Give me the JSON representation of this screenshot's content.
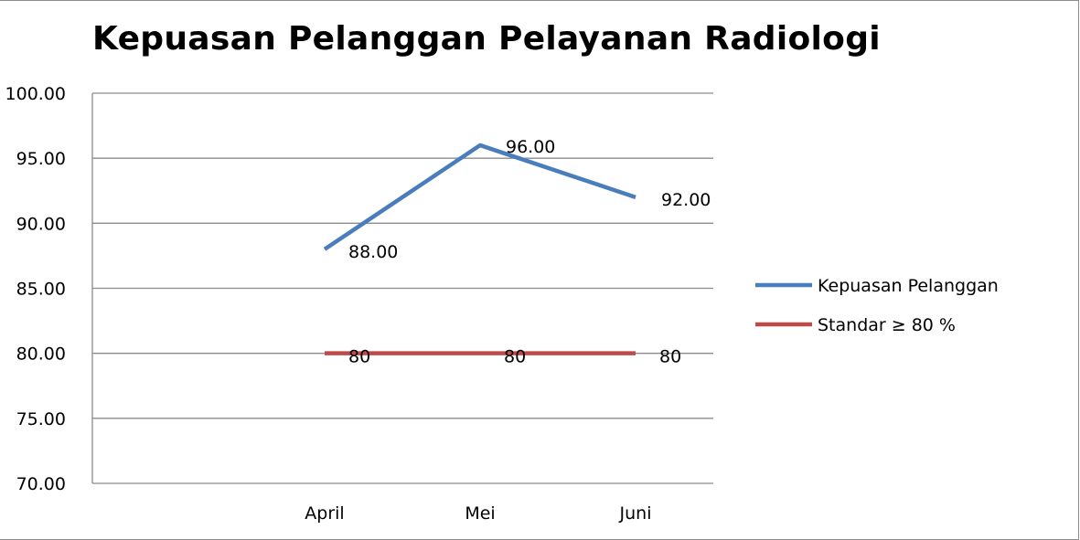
{
  "chart_data": {
    "type": "line",
    "title": "Kepuasan Pelanggan Pelayanan Radiologi",
    "categories": [
      "April",
      "Mei",
      "Juni"
    ],
    "y_tick_labels": [
      "70.00",
      "75.00",
      "80.00",
      "85.00",
      "90.00",
      "95.00",
      "100.00"
    ],
    "ylim": [
      70,
      100
    ],
    "y_step": 5,
    "grid": true,
    "legend_position": "right",
    "series": [
      {
        "name": "Kepuasan Pelanggan",
        "values": [
          88,
          96,
          92
        ],
        "data_labels": [
          "88.00",
          "96.00",
          "92.00"
        ],
        "color": "#4a7ebb"
      },
      {
        "name": "Standar  ≥ 80 %",
        "values": [
          80,
          80,
          80
        ],
        "data_labels": [
          "80",
          "80",
          "80"
        ],
        "color": "#be4b48"
      }
    ]
  }
}
